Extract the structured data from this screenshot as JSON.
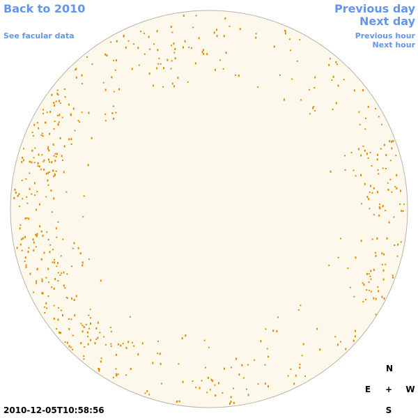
{
  "header": {
    "back": "Back to 2010",
    "facular": "See facular data"
  },
  "nav": {
    "previous_day": "Previous day",
    "next_day": "Next day",
    "previous_hour": "Previous hour",
    "next_hour": "Next hour"
  },
  "compass": {
    "north": "N",
    "east": "E",
    "center": "+",
    "west": "W",
    "south": "S"
  },
  "timestamp": "2010-12-05T10:58:56"
}
